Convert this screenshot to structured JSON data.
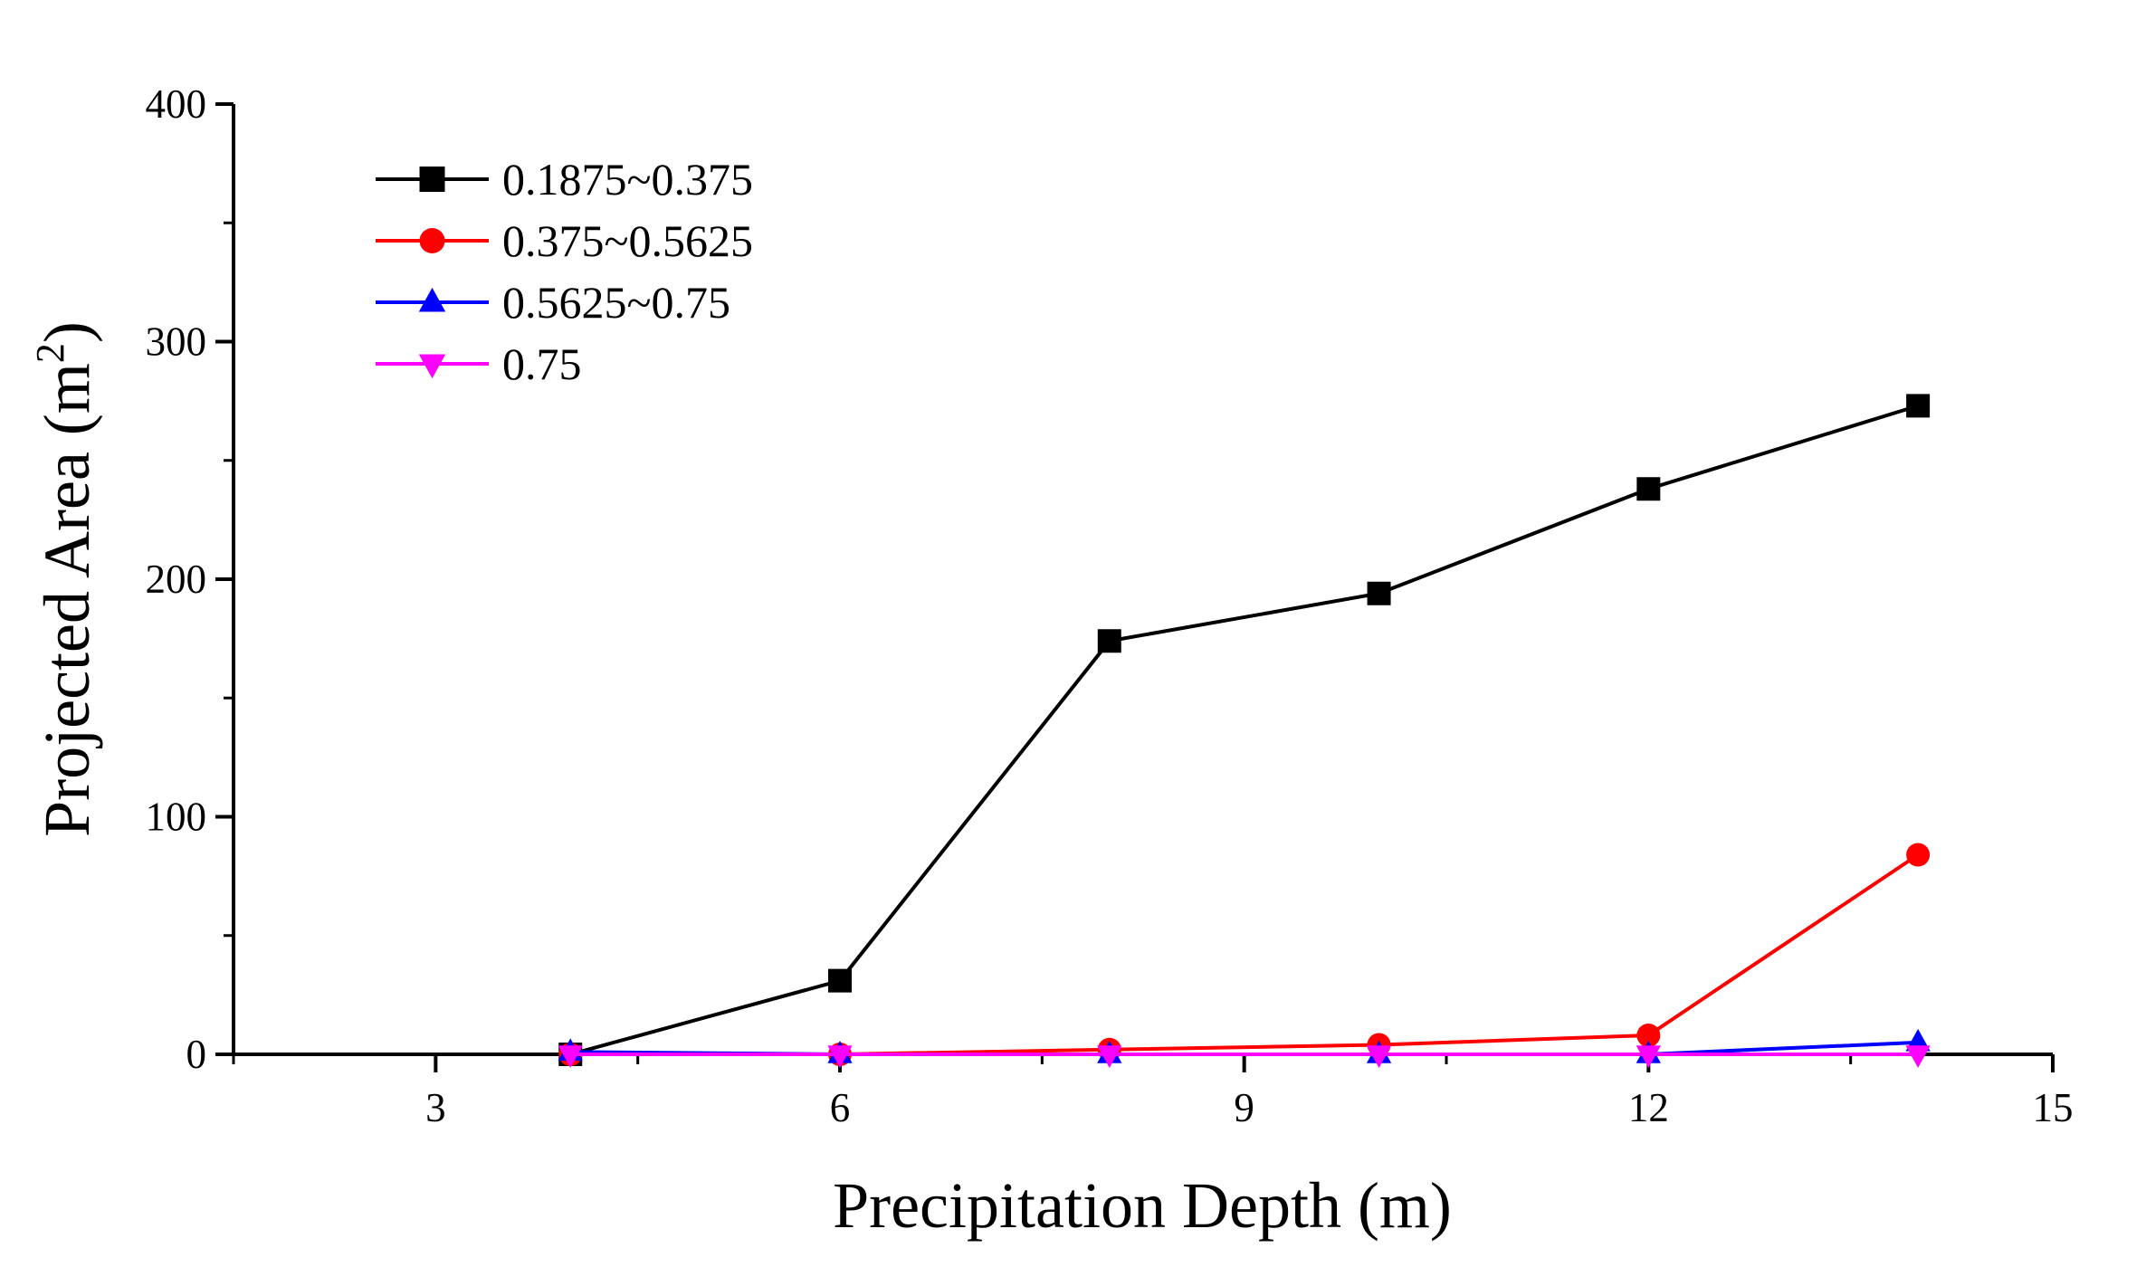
{
  "chart_data": {
    "type": "line",
    "title": "",
    "xlabel": "Precipitation Depth (m)",
    "ylabel_main": "Projected Area (m",
    "ylabel_sup": "2",
    "ylabel_close": ")",
    "xlim": [
      1.5,
      15
    ],
    "ylim": [
      0,
      400
    ],
    "xticks": [
      3,
      6,
      9,
      12,
      15
    ],
    "xticks_minor": [
      1.5,
      4.5,
      7.5,
      10.5,
      13.5
    ],
    "yticks": [
      0,
      100,
      200,
      300,
      400
    ],
    "yticks_minor": [
      50,
      150,
      250,
      350
    ],
    "grid": false,
    "legend_position": "top-left",
    "series": [
      {
        "name": "0.1875~0.375",
        "color": "#000000",
        "marker": "square",
        "x": [
          4,
          6,
          8,
          10,
          12,
          14
        ],
        "y": [
          0,
          31,
          174,
          194,
          238,
          273
        ]
      },
      {
        "name": "0.375~0.5625",
        "color": "#ff0000",
        "marker": "circle",
        "x": [
          4,
          6,
          8,
          10,
          12,
          14
        ],
        "y": [
          0,
          0,
          2,
          4,
          8,
          84
        ]
      },
      {
        "name": "0.5625~0.75",
        "color": "#0000ff",
        "marker": "triangle-up",
        "x": [
          4,
          6,
          8,
          10,
          12,
          14
        ],
        "y": [
          1,
          0,
          0,
          0,
          0,
          5
        ]
      },
      {
        "name": "0.75",
        "color": "#ff00ff",
        "marker": "triangle-down",
        "x": [
          4,
          6,
          8,
          10,
          12,
          14
        ],
        "y": [
          0,
          0,
          0,
          0,
          0,
          0
        ]
      }
    ]
  }
}
